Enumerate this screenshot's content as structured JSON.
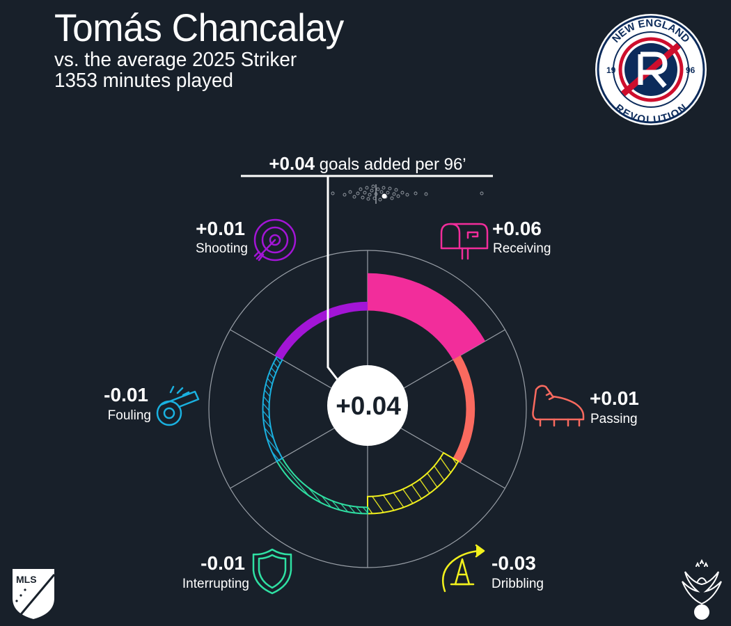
{
  "header": {
    "player_name": "Tomás Chancalay",
    "comparison": "vs. the average 2025 Striker",
    "minutes": "1353 minutes played"
  },
  "total": {
    "value_label": "+0.04",
    "description": " goals added per 96’",
    "center_label": "+0.04"
  },
  "team_logo": {
    "top_text": "NEW ENGLAND",
    "bottom_text": "REVOLUTION",
    "year_left": "19",
    "year_right": "96"
  },
  "league_logo": {
    "text": "MLS"
  },
  "colors": {
    "background": "#18202a",
    "shooting": "#a315d6",
    "receiving": "#f22d9b",
    "passing": "#fa6a5f",
    "dribbling": "#f2f11d",
    "interrupting": "#2fe0a3",
    "fouling": "#1ab1e0"
  },
  "categories": [
    {
      "name": "Receiving",
      "value_label": "+0.06",
      "icon": "mailbox-icon",
      "color": "#f22d9b"
    },
    {
      "name": "Passing",
      "value_label": "+0.01",
      "icon": "cleat-icon",
      "color": "#fa6a5f"
    },
    {
      "name": "Dribbling",
      "value_label": "-0.03",
      "icon": "cone-icon",
      "color": "#f2f11d"
    },
    {
      "name": "Interrupting",
      "value_label": "-0.01",
      "icon": "shield-icon",
      "color": "#2fe0a3"
    },
    {
      "name": "Fouling",
      "value_label": "-0.01",
      "icon": "whistle-icon",
      "color": "#1ab1e0"
    },
    {
      "name": "Shooting",
      "value_label": "+0.01",
      "icon": "target-icon",
      "color": "#a315d6"
    }
  ],
  "chart_data": {
    "type": "radial-bar",
    "title": "+0.04 goals added per 96’",
    "baseline": 0,
    "categories": [
      "Receiving",
      "Passing",
      "Dribbling",
      "Interrupting",
      "Fouling",
      "Shooting"
    ],
    "values": [
      0.06,
      0.01,
      -0.03,
      -0.01,
      -0.01,
      0.01
    ],
    "total": 0.04,
    "radial_range": [
      -0.1,
      0.1
    ]
  }
}
